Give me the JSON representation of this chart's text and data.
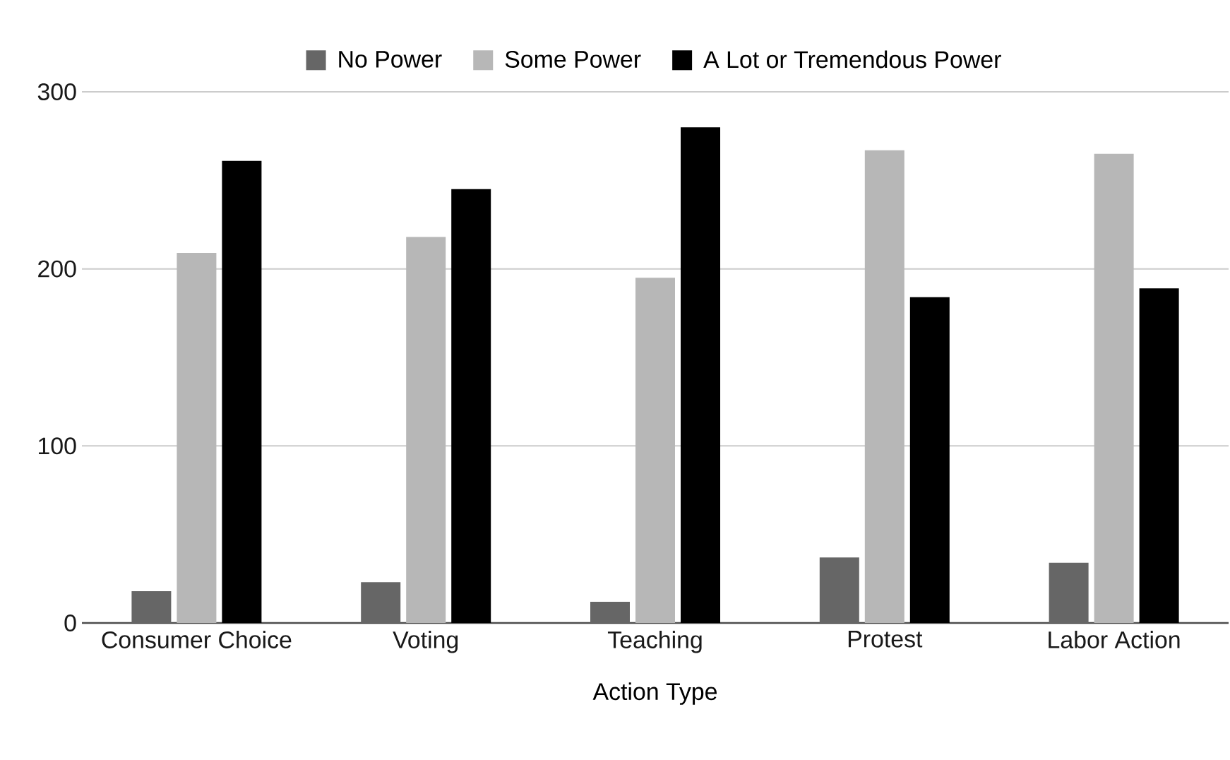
{
  "chart_data": {
    "type": "bar",
    "xlabel": "Action Type",
    "categories": [
      "Consumer Choice",
      "Voting",
      "Teaching",
      "Protest",
      "Labor Action"
    ],
    "series": [
      {
        "name": "No Power",
        "color": "#666666",
        "values": [
          18,
          23,
          12,
          37,
          34
        ]
      },
      {
        "name": "Some Power",
        "color": "#b7b7b7",
        "values": [
          209,
          218,
          195,
          267,
          265
        ]
      },
      {
        "name": "A Lot or Tremendous Power",
        "color": "#000000",
        "values": [
          261,
          245,
          280,
          184,
          189
        ]
      }
    ],
    "ylim": [
      0,
      300
    ],
    "yticks": [
      0,
      100,
      200,
      300
    ],
    "grid": "y",
    "legend": "top"
  }
}
